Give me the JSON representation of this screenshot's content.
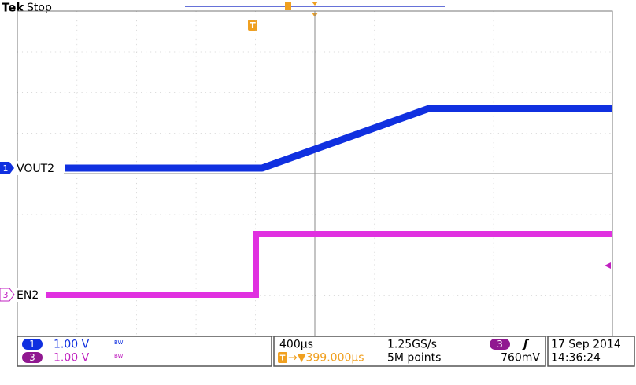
{
  "header": {
    "brand": "Tek",
    "state": "Stop"
  },
  "graticule": {
    "trigger_marker": "T",
    "ch1_marker": "1",
    "ch1_name": "VOUT2",
    "ch3_marker": "3",
    "ch3_name": "EN2"
  },
  "status": {
    "channels": [
      {
        "id": "1",
        "scale": "1.00 V",
        "bw": "BW"
      },
      {
        "id": "3",
        "scale": "1.00 V",
        "bw": "BW"
      }
    ],
    "horizontal_scale": "400µs",
    "sample_rate": "1.25GS/s",
    "trigger_position": "→▼399.000µs",
    "record_length": "5M points",
    "trigger_source": "3",
    "trigger_slope": "ʃ",
    "trigger_level": "760mV",
    "date": "17 Sep  2014",
    "time": "14:36:24"
  }
}
